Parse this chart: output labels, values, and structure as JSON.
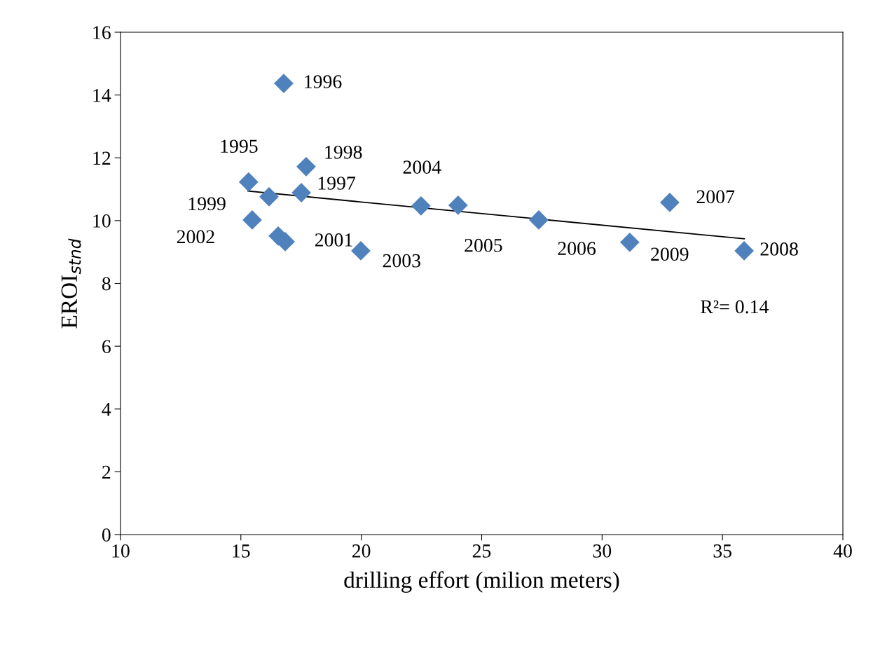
{
  "chart_data": {
    "type": "scatter",
    "xlabel": "drilling effort (milion meters)",
    "ylabel": "EROI$_{stnd}$",
    "xlim": [
      10,
      40
    ],
    "xticks": [
      10,
      15,
      20,
      25,
      30,
      35,
      40
    ],
    "ylim": [
      0,
      16
    ],
    "yticks": [
      0,
      2,
      4,
      6,
      8,
      10,
      12,
      14,
      16
    ],
    "grid": false,
    "marker": "diamond",
    "series": [
      {
        "type": "scatter",
        "color": "#4f81bd",
        "x": [
          15.32,
          16.78,
          17.51,
          17.71,
          16.17,
          16.55,
          16.84,
          15.47,
          19.98,
          22.48,
          24.02,
          27.37,
          32.81,
          35.9,
          31.15
        ],
        "values": [
          11.23,
          14.37,
          10.89,
          11.72,
          10.76,
          9.51,
          9.33,
          10.02,
          9.04,
          10.47,
          10.49,
          10.02,
          10.58,
          9.04,
          9.31
        ]
      },
      {
        "type": "line",
        "color": "#000000",
        "marker": "none",
        "line_style": "solid",
        "x": [
          15.3,
          35.9
        ],
        "values": [
          10.94,
          9.42
        ]
      }
    ],
    "annotations": [
      {
        "text": "1996",
        "x": 16.78,
        "y": 14.37
      },
      {
        "text": "1995",
        "x": 15.32,
        "y": 11.23
      },
      {
        "text": "1998",
        "x": 17.71,
        "y": 11.72
      },
      {
        "text": "1997",
        "x": 17.51,
        "y": 10.89
      },
      {
        "text": "1999",
        "x": 16.17,
        "y": 10.76
      },
      {
        "text": "2002",
        "x": 15.47,
        "y": 10.02
      },
      {
        "text": "2001",
        "x": 16.84,
        "y": 9.33
      },
      {
        "text": "2003",
        "x": 19.98,
        "y": 9.04
      },
      {
        "text": "2004",
        "x": 22.48,
        "y": 10.47
      },
      {
        "text": "2005",
        "x": 24.02,
        "y": 10.49
      },
      {
        "text": "2006",
        "x": 27.37,
        "y": 10.02
      },
      {
        "text": "2007",
        "x": 32.81,
        "y": 10.58
      },
      {
        "text": "2009",
        "x": 31.15,
        "y": 9.31
      },
      {
        "text": "2008",
        "x": 35.9,
        "y": 9.04
      },
      "R²= 0.14"
    ]
  }
}
